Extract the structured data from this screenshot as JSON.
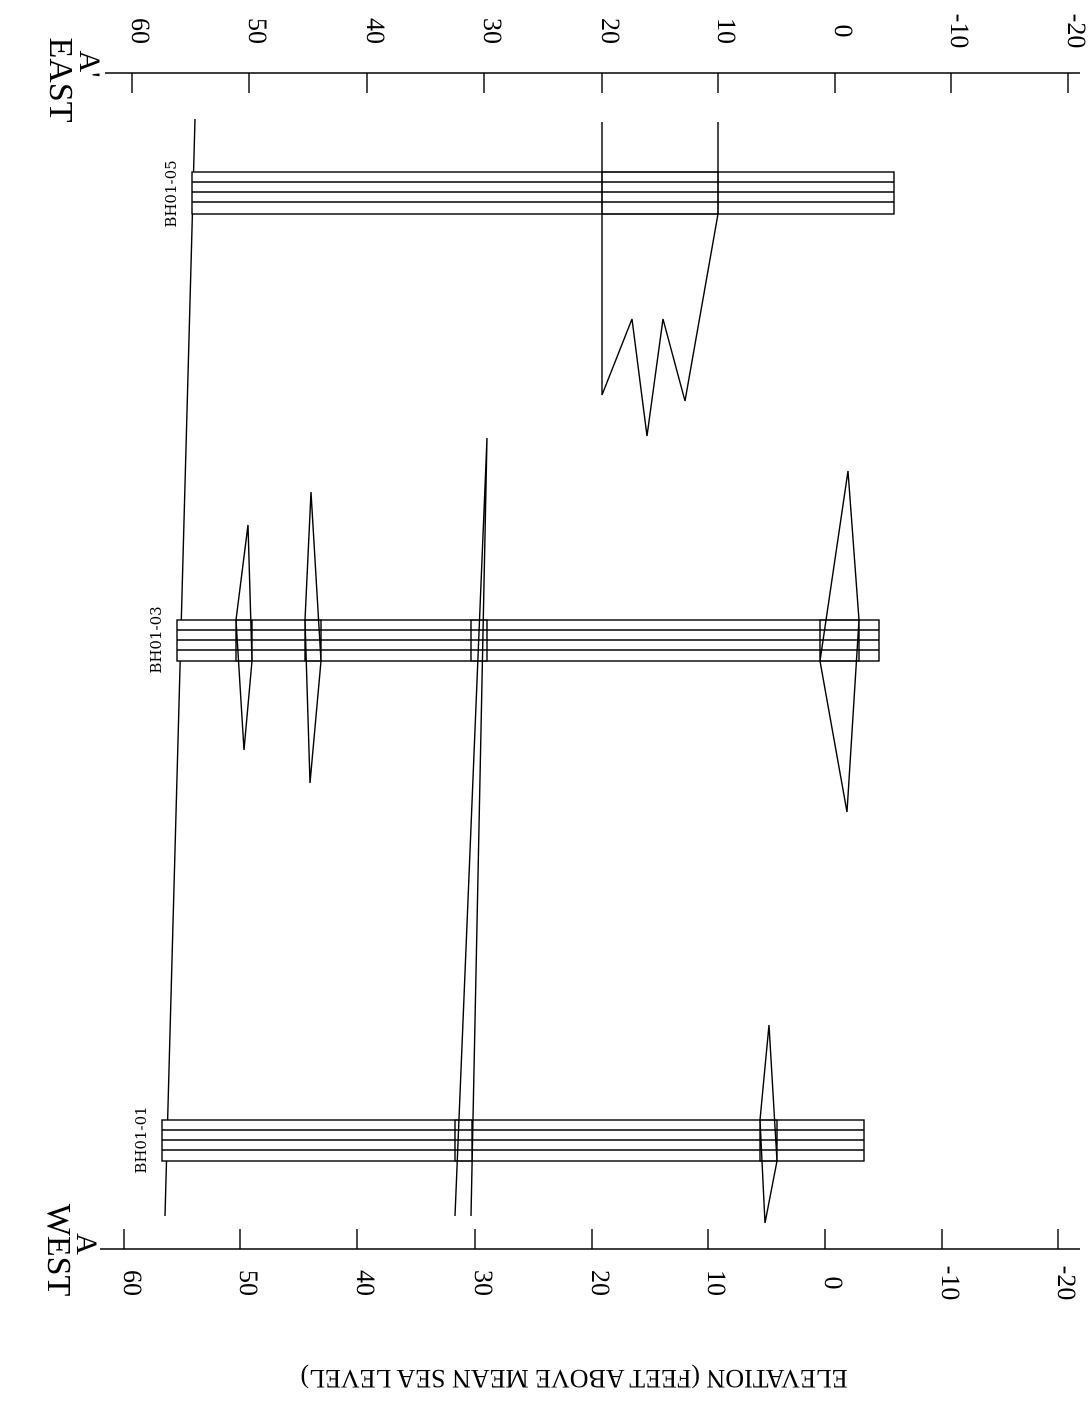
{
  "figure": {
    "ylabel": "ELEVATION (FEET ABOVE MEAN SEA LEVEL)",
    "west_label": "WEST",
    "west_section": "A",
    "east_label": "EAST",
    "east_section": "A'",
    "ticks": [
      "60",
      "50",
      "40",
      "30",
      "20",
      "10",
      "0",
      "-10",
      "-20"
    ]
  },
  "boreholes": [
    {
      "id": "BH01-01",
      "top_elev": 57,
      "bottom_elev": -3
    },
    {
      "id": "BH01-03",
      "top_elev": 55.5,
      "bottom_elev": -4.5
    },
    {
      "id": "BH01-05",
      "top_elev": 55,
      "bottom_elev": -5.5
    }
  ]
}
